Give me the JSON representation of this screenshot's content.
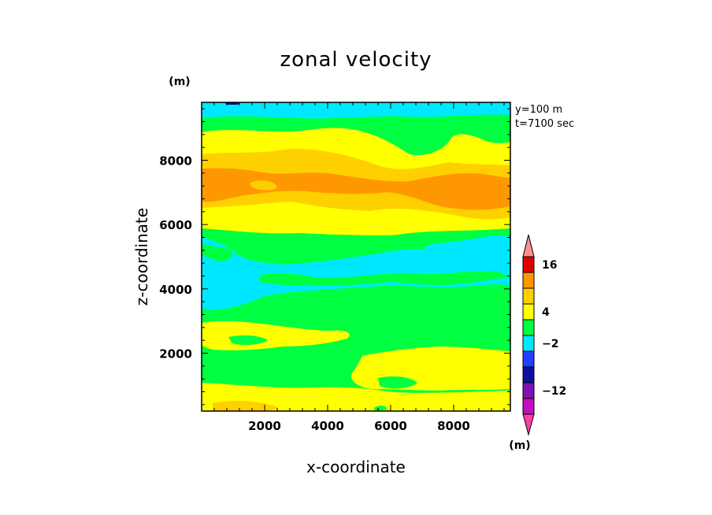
{
  "chart_data": {
    "type": "heatmap",
    "title": "zonal velocity",
    "xlabel": "x-coordinate",
    "ylabel": "z-coordinate",
    "x_unit": "(m)",
    "z_unit": "(m)",
    "colorbar_unit": "(m)",
    "annotations": [
      "y=100 m",
      "t=7100 sec"
    ],
    "xlim": [
      0,
      9800
    ],
    "ylim": [
      200,
      9800
    ],
    "x_ticks": [
      "2000",
      "4000",
      "6000",
      "8000"
    ],
    "y_ticks": [
      "2000",
      "4000",
      "6000",
      "8000"
    ],
    "colorbar": {
      "tick_labels": [
        "16",
        "4",
        "-2",
        "-12"
      ],
      "levels": [
        -20,
        -16,
        -12,
        -8,
        -4,
        -2,
        0,
        4,
        8,
        12,
        16,
        20
      ],
      "colors": [
        "#ff40a0",
        "#c010c0",
        "#8010b0",
        "#1010a0",
        "#2040ff",
        "#00e8ff",
        "#00ff40",
        "#ffff00",
        "#ffd000",
        "#ff9800",
        "#e00000",
        "#ff9090"
      ],
      "extend": "both"
    },
    "bands": [
      {
        "zmin": 200,
        "zmax": 600,
        "level": 4,
        "desc": "u ~ 0-4"
      },
      {
        "zmin": 600,
        "zmax": 1800,
        "level": 0,
        "desc": "u ~ -2-0"
      },
      {
        "zmin": 1800,
        "zmax": 2600,
        "level": 4,
        "desc": "u ~ 0-4"
      },
      {
        "zmin": 2600,
        "zmax": 3600,
        "level": 0,
        "desc": "u ~ -2-0"
      },
      {
        "zmin": 3600,
        "zmax": 5200,
        "level": -2,
        "desc": "u ~ -4 to -2"
      },
      {
        "zmin": 5200,
        "zmax": 6000,
        "level": 0,
        "desc": "u ~ -2-0"
      },
      {
        "zmin": 6000,
        "zmax": 6600,
        "level": 4,
        "desc": "u ~ 0-4"
      },
      {
        "zmin": 6600,
        "zmax": 7600,
        "level": 12,
        "desc": "u ~ 8-12"
      },
      {
        "zmin": 7600,
        "zmax": 8400,
        "level": 8,
        "desc": "u ~ 4-8"
      },
      {
        "zmin": 8400,
        "zmax": 9000,
        "level": 4,
        "desc": "u ~ 0-4"
      },
      {
        "zmin": 9000,
        "zmax": 9400,
        "level": 0,
        "desc": "u ~ -2-0"
      },
      {
        "zmin": 9400,
        "zmax": 9800,
        "level": -2,
        "desc": "u ~ -4 to -2"
      }
    ]
  }
}
